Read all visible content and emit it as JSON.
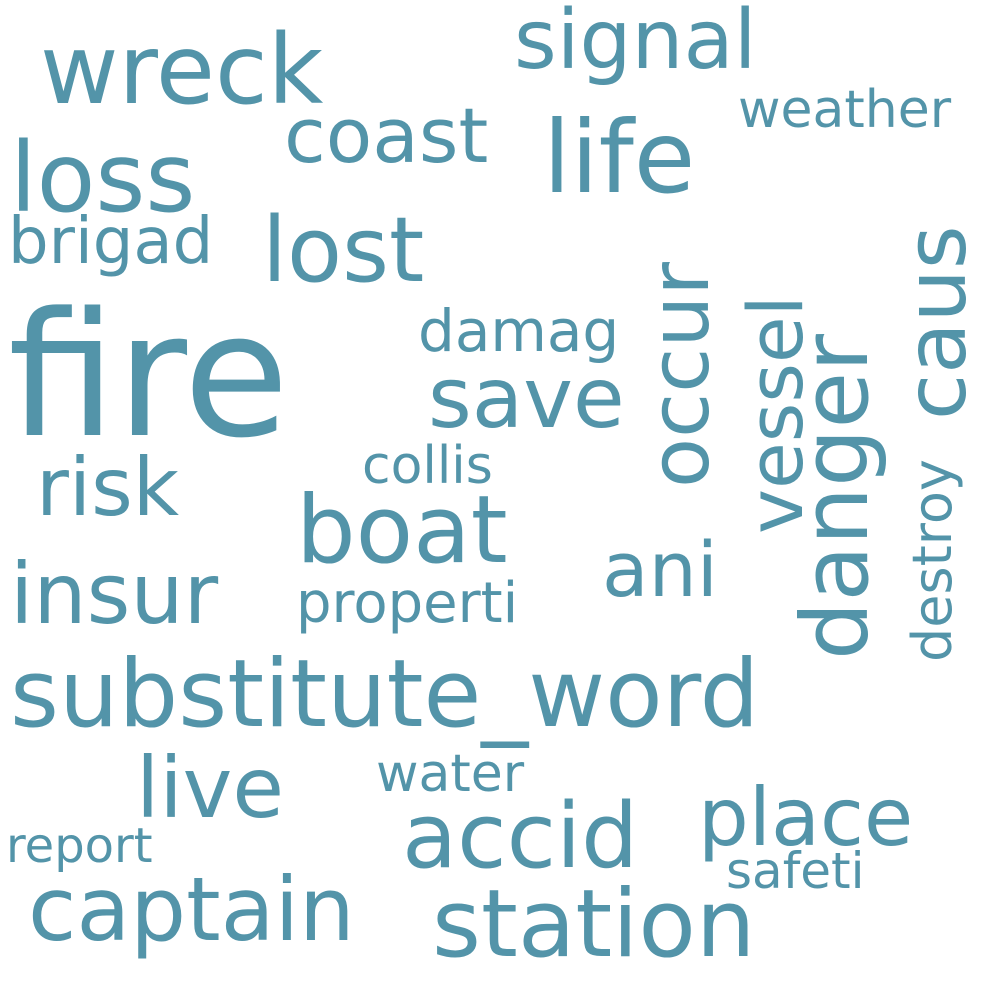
{
  "colors": {
    "word": "#5394a9",
    "background": "#ffffff"
  },
  "words": [
    {
      "text": "fire"
    },
    {
      "text": "substitute_word"
    },
    {
      "text": "danger"
    },
    {
      "text": "wreck"
    },
    {
      "text": "life"
    },
    {
      "text": "loss"
    },
    {
      "text": "lost"
    },
    {
      "text": "save"
    },
    {
      "text": "boat"
    },
    {
      "text": "station"
    },
    {
      "text": "accid"
    },
    {
      "text": "captain"
    },
    {
      "text": "signal"
    },
    {
      "text": "coast"
    },
    {
      "text": "occur"
    },
    {
      "text": "vessel"
    },
    {
      "text": "caus"
    },
    {
      "text": "insur"
    },
    {
      "text": "live"
    },
    {
      "text": "place"
    },
    {
      "text": "risk"
    },
    {
      "text": "ani"
    },
    {
      "text": "brigad"
    },
    {
      "text": "damag"
    },
    {
      "text": "properti"
    },
    {
      "text": "destroy"
    },
    {
      "text": "collis"
    },
    {
      "text": "weather"
    },
    {
      "text": "water"
    },
    {
      "text": "safeti"
    },
    {
      "text": "report"
    }
  ]
}
